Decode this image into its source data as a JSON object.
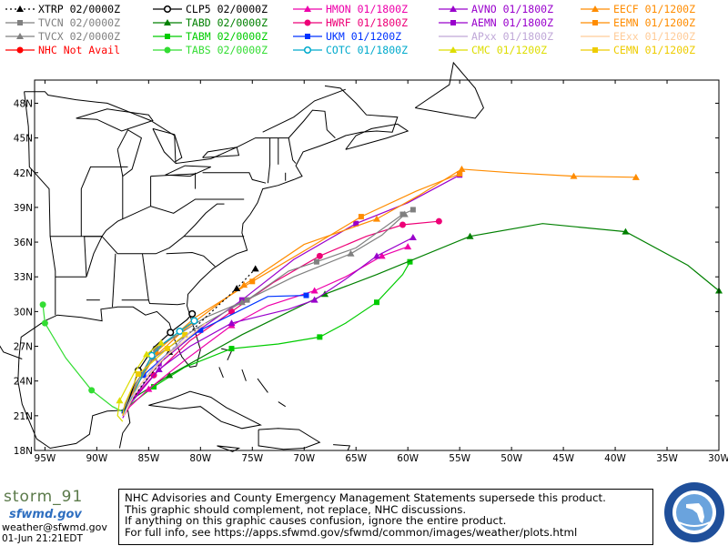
{
  "legend": [
    {
      "label": "XTRP",
      "time": "02/0000Z",
      "color": "#000000",
      "marker": "triangle",
      "line": "dotted"
    },
    {
      "label": "TVCN",
      "time": "02/0000Z",
      "color": "#808080",
      "marker": "square",
      "line": "solid"
    },
    {
      "label": "TVCX",
      "time": "02/0000Z",
      "color": "#808080",
      "marker": "triangle",
      "line": "solid"
    },
    {
      "label": "NHC",
      "time": "Not Avail",
      "color": "#ff0000",
      "marker": "circle",
      "line": "solid"
    },
    {
      "label": "CLP5",
      "time": "02/0000Z",
      "color": "#000000",
      "marker": "ring",
      "line": "solid"
    },
    {
      "label": "TABD",
      "time": "02/0000Z",
      "color": "#008000",
      "marker": "triangle",
      "line": "solid"
    },
    {
      "label": "TABM",
      "time": "02/0000Z",
      "color": "#00cc00",
      "marker": "square",
      "line": "solid"
    },
    {
      "label": "TABS",
      "time": "02/0000Z",
      "color": "#33dd33",
      "marker": "circle",
      "line": "solid"
    },
    {
      "label": "HMON",
      "time": "01/1800Z",
      "color": "#ee00aa",
      "marker": "triangle",
      "line": "solid"
    },
    {
      "label": "HWRF",
      "time": "01/1800Z",
      "color": "#ee0077",
      "marker": "circle",
      "line": "solid"
    },
    {
      "label": "UKM",
      "time": "01/1200Z",
      "color": "#0033ff",
      "marker": "square",
      "line": "solid"
    },
    {
      "label": "COTC",
      "time": "01/1800Z",
      "color": "#00aacc",
      "marker": "ring",
      "line": "solid"
    },
    {
      "label": "AVNO",
      "time": "01/1800Z",
      "color": "#9900cc",
      "marker": "triangle",
      "line": "solid"
    },
    {
      "label": "AEMN",
      "time": "01/1800Z",
      "color": "#9900cc",
      "marker": "square",
      "line": "solid"
    },
    {
      "label": "APxx",
      "time": "01/1800Z",
      "color": "#c0a8d8",
      "marker": "none",
      "line": "solid"
    },
    {
      "label": "CMC",
      "time": "01/1200Z",
      "color": "#dddd00",
      "marker": "triangle",
      "line": "solid"
    },
    {
      "label": "EECF",
      "time": "01/1200Z",
      "color": "#ff8c00",
      "marker": "triangle",
      "line": "solid"
    },
    {
      "label": "EEMN",
      "time": "01/1200Z",
      "color": "#ff8c00",
      "marker": "square",
      "line": "solid"
    },
    {
      "label": "EExx",
      "time": "01/1200Z",
      "color": "#ffcc99",
      "marker": "none",
      "line": "solid"
    },
    {
      "label": "CEMN",
      "time": "01/1200Z",
      "color": "#eecc00",
      "marker": "square",
      "line": "solid"
    }
  ],
  "map": {
    "lon_range": [
      -96,
      -30
    ],
    "lat_range": [
      18,
      50
    ],
    "lon_ticks": [
      {
        "v": -95,
        "t": "95W"
      },
      {
        "v": -90,
        "t": "90W"
      },
      {
        "v": -85,
        "t": "85W"
      },
      {
        "v": -80,
        "t": "80W"
      },
      {
        "v": -75,
        "t": "75W"
      },
      {
        "v": -70,
        "t": "70W"
      },
      {
        "v": -65,
        "t": "65W"
      },
      {
        "v": -60,
        "t": "60W"
      },
      {
        "v": -55,
        "t": "55W"
      },
      {
        "v": -50,
        "t": "50W"
      },
      {
        "v": -45,
        "t": "45W"
      },
      {
        "v": -40,
        "t": "40W"
      },
      {
        "v": -35,
        "t": "35W"
      },
      {
        "v": -30,
        "t": "30W"
      }
    ],
    "lat_ticks": [
      {
        "v": 18,
        "t": "18N"
      },
      {
        "v": 21,
        "t": "21N"
      },
      {
        "v": 24,
        "t": "24N"
      },
      {
        "v": 27,
        "t": "27N"
      },
      {
        "v": 30,
        "t": "30N"
      },
      {
        "v": 33,
        "t": "33N"
      },
      {
        "v": 36,
        "t": "36N"
      },
      {
        "v": 39,
        "t": "39N"
      },
      {
        "v": 42,
        "t": "42N"
      },
      {
        "v": 45,
        "t": "45N"
      },
      {
        "v": 48,
        "t": "48N"
      }
    ],
    "tracks": [
      {
        "model": "TABS",
        "pts": [
          [
            -87.6,
            21.4
          ],
          [
            -88.5,
            21.8
          ],
          [
            -90.5,
            23.2
          ],
          [
            -93,
            26
          ],
          [
            -95,
            29
          ],
          [
            -95.2,
            30.6
          ]
        ]
      },
      {
        "model": "TABM",
        "pts": [
          [
            -87.6,
            21.4
          ],
          [
            -87,
            21.8
          ],
          [
            -84.5,
            23.5
          ],
          [
            -81.5,
            25.2
          ],
          [
            -77,
            26.8
          ],
          [
            -72.5,
            27.2
          ],
          [
            -68.5,
            27.8
          ],
          [
            -66,
            29
          ],
          [
            -63,
            30.8
          ],
          [
            -60.5,
            33.2
          ],
          [
            -59.8,
            34.3
          ]
        ]
      },
      {
        "model": "TABD",
        "pts": [
          [
            -87.6,
            21.4
          ],
          [
            -86.5,
            22.5
          ],
          [
            -83,
            24.5
          ],
          [
            -76,
            28
          ],
          [
            -68,
            31.5
          ],
          [
            -63,
            33.2
          ],
          [
            -54,
            36.5
          ],
          [
            -47,
            37.6
          ],
          [
            -39,
            36.9
          ],
          [
            -33,
            34
          ],
          [
            -30,
            31.8
          ]
        ]
      },
      {
        "model": "HMON",
        "pts": [
          [
            -87.4,
            21
          ],
          [
            -86.8,
            21.8
          ],
          [
            -85,
            23.3
          ],
          [
            -81.5,
            25.8
          ],
          [
            -77,
            28.8
          ],
          [
            -73.5,
            30.5
          ],
          [
            -69,
            31.8
          ],
          [
            -66,
            33
          ],
          [
            -62.5,
            34.8
          ],
          [
            -60,
            35.6
          ]
        ]
      },
      {
        "model": "HWRF",
        "pts": [
          [
            -87.4,
            21
          ],
          [
            -86.5,
            22.5
          ],
          [
            -84.5,
            24.5
          ],
          [
            -81,
            27.5
          ],
          [
            -77,
            30
          ],
          [
            -73,
            32.5
          ],
          [
            -68.5,
            34.8
          ],
          [
            -64,
            36.5
          ],
          [
            -60.5,
            37.5
          ],
          [
            -57,
            37.8
          ]
        ]
      },
      {
        "model": "AVNO",
        "pts": [
          [
            -87.5,
            20.8
          ],
          [
            -86.8,
            22
          ],
          [
            -84,
            25
          ],
          [
            -81,
            27
          ],
          [
            -77,
            29
          ],
          [
            -71.5,
            30.2
          ],
          [
            -69,
            31
          ],
          [
            -66,
            32.8
          ],
          [
            -63,
            34.8
          ],
          [
            -59.5,
            36.4
          ]
        ]
      },
      {
        "model": "AEMN",
        "pts": [
          [
            -87.5,
            21
          ],
          [
            -86.5,
            22.5
          ],
          [
            -84,
            25.5
          ],
          [
            -80,
            28.5
          ],
          [
            -76,
            31
          ],
          [
            -71,
            34.5
          ],
          [
            -65,
            37.6
          ],
          [
            -60,
            39.4
          ],
          [
            -55,
            41.8
          ]
        ]
      },
      {
        "model": "UKM",
        "pts": [
          [
            -87.6,
            21.2
          ],
          [
            -87,
            22.5
          ],
          [
            -85.5,
            24.5
          ],
          [
            -83,
            26.5
          ],
          [
            -80,
            28.4
          ],
          [
            -73.5,
            31.3
          ],
          [
            -69.8,
            31.4
          ]
        ]
      },
      {
        "model": "EECF",
        "pts": [
          [
            -87.5,
            21.2
          ],
          [
            -86.3,
            23.4
          ],
          [
            -84.5,
            26
          ],
          [
            -81.5,
            28.5
          ],
          [
            -75.8,
            32.3
          ],
          [
            -70,
            35.8
          ],
          [
            -63,
            38
          ],
          [
            -59,
            40
          ],
          [
            -54.8,
            42.3
          ],
          [
            -50,
            42
          ],
          [
            -44,
            41.7
          ],
          [
            -38,
            41.6
          ]
        ]
      },
      {
        "model": "EEMN",
        "pts": [
          [
            -87.5,
            21.2
          ],
          [
            -86,
            23.8
          ],
          [
            -84.3,
            26.5
          ],
          [
            -80.5,
            29.5
          ],
          [
            -75,
            32.6
          ],
          [
            -69.5,
            35.5
          ],
          [
            -64.5,
            38.2
          ],
          [
            -59.2,
            40.4
          ],
          [
            -55,
            41.9
          ]
        ]
      },
      {
        "model": "TVCN",
        "pts": [
          [
            -87.5,
            21.2
          ],
          [
            -86.5,
            23.3
          ],
          [
            -84.3,
            26.8
          ],
          [
            -79.5,
            29.5
          ],
          [
            -75.5,
            31
          ],
          [
            -71.5,
            33.5
          ],
          [
            -68.8,
            34.3
          ],
          [
            -65,
            35.5
          ],
          [
            -60.5,
            38.4
          ],
          [
            -59.5,
            38.8
          ]
        ]
      },
      {
        "model": "TVCX",
        "pts": [
          [
            -87.5,
            21.2
          ],
          [
            -86.5,
            23.5
          ],
          [
            -84.5,
            26
          ],
          [
            -80.5,
            28.5
          ],
          [
            -76,
            30.8
          ],
          [
            -71,
            33
          ],
          [
            -65.5,
            35
          ],
          [
            -62.5,
            36.6
          ],
          [
            -60.3,
            38.4
          ]
        ]
      },
      {
        "model": "XTRP",
        "pts": [
          [
            -87.5,
            21.2
          ],
          [
            -85.5,
            23.8
          ],
          [
            -83,
            26.5
          ],
          [
            -79.5,
            29.5
          ],
          [
            -76.5,
            32
          ],
          [
            -74.7,
            33.7
          ]
        ]
      },
      {
        "model": "CLP5",
        "pts": [
          [
            -87.5,
            21.2
          ],
          [
            -87,
            22
          ],
          [
            -86,
            24.9
          ],
          [
            -84.5,
            26.9
          ],
          [
            -82.9,
            28.2
          ],
          [
            -81.3,
            29.3
          ],
          [
            -80.8,
            29.8
          ]
        ]
      },
      {
        "model": "COTC",
        "pts": [
          [
            -87.4,
            21.2
          ],
          [
            -86.5,
            22.8
          ],
          [
            -84.7,
            26.2
          ],
          [
            -83.5,
            27.3
          ],
          [
            -82,
            28.3
          ],
          [
            -80.6,
            29.2
          ]
        ]
      },
      {
        "model": "CMC",
        "pts": [
          [
            -87.5,
            20.5
          ],
          [
            -88,
            21
          ],
          [
            -87.8,
            22.3
          ],
          [
            -86.4,
            24.7
          ],
          [
            -85.2,
            26.3
          ],
          [
            -83.8,
            27.3
          ]
        ]
      },
      {
        "model": "CEMN",
        "pts": [
          [
            -87.5,
            21
          ],
          [
            -87.3,
            22
          ],
          [
            -86,
            24.6
          ],
          [
            -84.8,
            25.5
          ],
          [
            -83.2,
            26.8
          ],
          [
            -81.5,
            28
          ]
        ]
      },
      {
        "model": "APxx",
        "pts": [
          [
            -87.4,
            21
          ],
          [
            -86.7,
            22.6
          ],
          [
            -84.5,
            25.2
          ],
          [
            -81,
            28.2
          ]
        ]
      },
      {
        "model": "EExx",
        "pts": [
          [
            -87.4,
            21
          ],
          [
            -86,
            23.5
          ],
          [
            -83.5,
            26
          ],
          [
            -79.5,
            29
          ]
        ]
      }
    ]
  },
  "footer": {
    "storm_name": "storm_91",
    "logo_text": "sfwmd.gov",
    "email": "weather@sfwmd.gov",
    "timestamp": "01-Jun 21:21EDT",
    "disclaimer": [
      "NHC Advisories and County Emergency Management Statements supersede this product.",
      "This graphic should complement, not replace, NHC discussions.",
      "If anything on this graphic causes confusion, ignore the entire product.",
      "For full info, see  https://apps.sfwmd.gov/sfwmd/common/images/weather/plots.html"
    ]
  },
  "colors": {
    "land": "#ffffff",
    "water": "#ffffff",
    "grid": "#000000",
    "coast": "#000000"
  }
}
